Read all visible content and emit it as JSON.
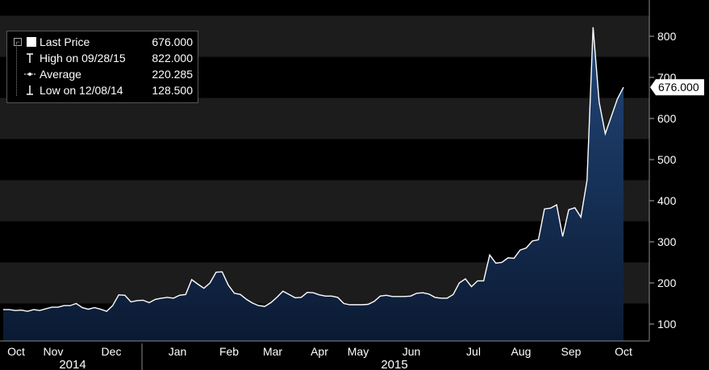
{
  "chart_data": {
    "type": "area",
    "ylim": [
      50,
      900
    ],
    "yticks": [
      100,
      200,
      300,
      400,
      500,
      600,
      700,
      800
    ],
    "month_labels": [
      "Oct",
      "Nov",
      "Dec",
      "Jan",
      "Feb",
      "Mar",
      "Apr",
      "May",
      "Jun",
      "Jul",
      "Aug",
      "Sep",
      "Oct"
    ],
    "year_labels": [
      "2014",
      "2015"
    ],
    "last_value_label": "676.000",
    "legend": [
      {
        "label": "Last Price",
        "value": "676.000"
      },
      {
        "label": "High on 09/28/15",
        "value": "822.000"
      },
      {
        "label": "Average",
        "value": "220.285"
      },
      {
        "label": "Low on 12/08/14",
        "value": "128.500"
      }
    ],
    "values": [
      135,
      135,
      133,
      134,
      131,
      135,
      133,
      137,
      141,
      141,
      145,
      145,
      150,
      140,
      136,
      140,
      136,
      131,
      145,
      171,
      170,
      154,
      157,
      158,
      152,
      160,
      163,
      165,
      163,
      170,
      172,
      208,
      197,
      187,
      200,
      226,
      227,
      195,
      175,
      172,
      160,
      151,
      145,
      143,
      152,
      165,
      180,
      172,
      164,
      165,
      177,
      176,
      171,
      168,
      168,
      165,
      150,
      147,
      147,
      147,
      148,
      155,
      168,
      170,
      167,
      167,
      167,
      168,
      175,
      176,
      173,
      165,
      163,
      163,
      172,
      200,
      210,
      191,
      205,
      205,
      268,
      248,
      250,
      261,
      260,
      280,
      285,
      302,
      305,
      380,
      382,
      390,
      313,
      378,
      383,
      360,
      450,
      822,
      640,
      563,
      605,
      648,
      676
    ],
    "colors": {
      "line": "#ffffff",
      "fill_top": "#1e3d6b",
      "fill_bottom": "#0c1c36",
      "grid_band": "#1c1c1c"
    }
  }
}
